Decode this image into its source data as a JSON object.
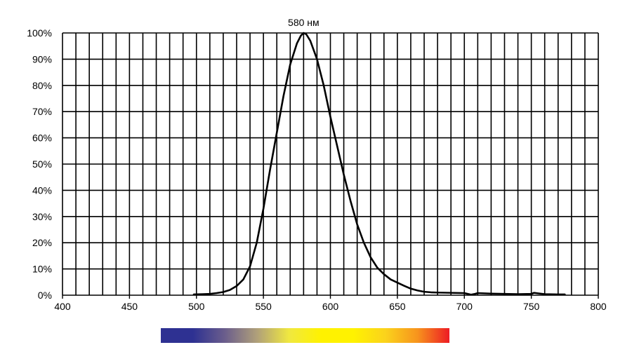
{
  "chart_data": {
    "type": "line",
    "title": "",
    "xlabel": "",
    "ylabel": "",
    "xlim": [
      400,
      800
    ],
    "ylim": [
      0,
      100
    ],
    "x_ticks": [
      400,
      450,
      500,
      550,
      600,
      650,
      700,
      750,
      800
    ],
    "x_tick_labels": [
      "400",
      "450",
      "500",
      "550",
      "600",
      "650",
      "700",
      "750",
      "800"
    ],
    "y_ticks": [
      0,
      10,
      20,
      30,
      40,
      50,
      60,
      70,
      80,
      90,
      100
    ],
    "y_tick_labels": [
      "0%",
      "10%",
      "20%",
      "30%",
      "40%",
      "50%",
      "60%",
      "70%",
      "80%",
      "90%",
      "100%"
    ],
    "grid": true,
    "x_minor_step": 10,
    "y_minor_step": 10,
    "line_color": "#000000",
    "annotations": [
      {
        "text": "580 нм",
        "x": 580,
        "y": 100
      }
    ],
    "series": [
      {
        "x": [
          498,
          505,
          510,
          515,
          520,
          525,
          530,
          535,
          540,
          545,
          550,
          555,
          560,
          565,
          570,
          575,
          578,
          580,
          582,
          585,
          590,
          595,
          600,
          605,
          610,
          615,
          620,
          625,
          630,
          635,
          640,
          645,
          650,
          655,
          660,
          665,
          670,
          675,
          680,
          690,
          700,
          705,
          708,
          710,
          720,
          730,
          740,
          750,
          752,
          755,
          760,
          770,
          775
        ],
        "values": [
          0.3,
          0.4,
          0.5,
          0.8,
          1.2,
          2.0,
          3.5,
          6.0,
          11.0,
          20.0,
          33.0,
          48.0,
          62.0,
          76.0,
          88.0,
          96.0,
          99.0,
          100.0,
          99.5,
          97.0,
          90.0,
          80.0,
          68.0,
          57.0,
          46.0,
          36.0,
          27.0,
          20.0,
          14.5,
          10.5,
          8.0,
          6.0,
          4.8,
          3.6,
          2.5,
          1.8,
          1.3,
          1.1,
          1.0,
          0.9,
          0.8,
          0.2,
          0.5,
          0.8,
          0.6,
          0.5,
          0.4,
          0.5,
          0.9,
          0.7,
          0.4,
          0.3,
          0.3
        ]
      }
    ]
  },
  "spectrum_bar": {
    "colors": [
      "#2e3192",
      "#2e3192",
      "#6b5e8c",
      "#b0a07a",
      "#f0e840",
      "#fff200",
      "#fff200",
      "#fbd31c",
      "#f7941d",
      "#ed1c24"
    ]
  }
}
